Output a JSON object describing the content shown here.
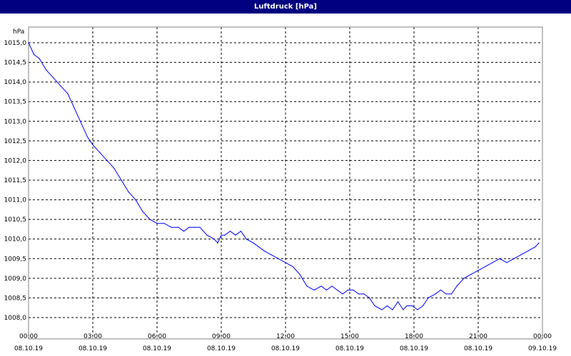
{
  "window": {
    "title": "Luftdruck [hPa]"
  },
  "colors": {
    "titlebar": "#000080",
    "line": "#0000ff",
    "grid": "#000000"
  },
  "chart_data": {
    "type": "line",
    "title": "Luftdruck [hPa]",
    "ylabel": "hPa",
    "xlabel": "",
    "ylim": [
      1007.9,
      1015.1
    ],
    "xlim_hours": [
      0,
      24
    ],
    "grid": true,
    "y_ticks": [
      "1008,0",
      "1008,5",
      "1009,0",
      "1009,5",
      "1010,0",
      "1010,5",
      "1011,0",
      "1011,5",
      "1012,0",
      "1012,5",
      "1013,0",
      "1013,5",
      "1014,0",
      "1014,5",
      "1015,0"
    ],
    "x_ticks": [
      {
        "time": "00:00",
        "date": "08.10.19"
      },
      {
        "time": "03:00",
        "date": "08.10.19"
      },
      {
        "time": "06:00",
        "date": "08.10.19"
      },
      {
        "time": "09:00",
        "date": "08.10.19"
      },
      {
        "time": "12:00",
        "date": "08.10.19"
      },
      {
        "time": "15:00",
        "date": "08.10.19"
      },
      {
        "time": "18:00",
        "date": "08.10.19"
      },
      {
        "time": "21:00",
        "date": "08.10.19"
      },
      {
        "time": "00:00",
        "date": "09.10.19"
      }
    ],
    "series": [
      {
        "x": [
          "08.10.19 00:00",
          "08.10.19 00:15",
          "08.10.19 00:30",
          "08.10.19 00:50",
          "08.10.19 01:10",
          "08.10.19 01:30",
          "08.10.19 01:50",
          "08.10.19 02:05",
          "08.10.19 02:25",
          "08.10.19 02:45",
          "08.10.19 03:00",
          "08.10.19 03:20",
          "08.10.19 03:40",
          "08.10.19 04:00",
          "08.10.19 04:20",
          "08.10.19 04:40",
          "08.10.19 05:00",
          "08.10.19 05:20",
          "08.10.19 05:40",
          "08.10.19 06:00",
          "08.10.19 06:20",
          "08.10.19 06:40",
          "08.10.19 07:00",
          "08.10.19 07:15",
          "08.10.19 07:30",
          "08.10.19 07:45",
          "08.10.19 08:00",
          "08.10.19 08:20",
          "08.10.19 08:40",
          "08.10.19 08:50",
          "08.10.19 09:00",
          "08.10.19 09:10",
          "08.10.19 09:25",
          "08.10.19 09:40",
          "08.10.19 09:55",
          "08.10.19 10:10",
          "08.10.19 10:30",
          "08.10.19 10:45",
          "08.10.19 11:00",
          "08.10.19 11:20",
          "08.10.19 11:40",
          "08.10.19 12:00",
          "08.10.19 12:20",
          "08.10.19 12:40",
          "08.10.19 13:00",
          "08.10.19 13:20",
          "08.10.19 13:40",
          "08.10.19 13:55",
          "08.10.19 14:10",
          "08.10.19 14:25",
          "08.10.19 14:40",
          "08.10.19 14:55",
          "08.10.19 15:10",
          "08.10.19 15:25",
          "08.10.19 15:40",
          "08.10.19 15:55",
          "08.10.19 16:10",
          "08.10.19 16:30",
          "08.10.19 16:45",
          "08.10.19 17:00",
          "08.10.19 17:15",
          "08.10.19 17:30",
          "08.10.19 17:40",
          "08.10.19 17:55",
          "08.10.19 18:10",
          "08.10.19 18:25",
          "08.10.19 18:40",
          "08.10.19 19:00",
          "08.10.19 19:15",
          "08.10.19 19:30",
          "08.10.19 19:45",
          "08.10.19 20:00",
          "08.10.19 20:20",
          "08.10.19 20:40",
          "08.10.19 21:00",
          "08.10.19 21:20",
          "08.10.19 21:40",
          "08.10.19 22:00",
          "08.10.19 22:20",
          "08.10.19 22:40",
          "08.10.19 23:00",
          "08.10.19 23:20",
          "08.10.19 23:40",
          "08.10.19 23:50"
        ],
        "values": [
          1015.0,
          1014.7,
          1014.6,
          1014.3,
          1014.1,
          1013.9,
          1013.7,
          1013.4,
          1013.0,
          1012.6,
          1012.4,
          1012.2,
          1012.0,
          1011.8,
          1011.5,
          1011.2,
          1011.0,
          1010.7,
          1010.5,
          1010.4,
          1010.4,
          1010.3,
          1010.3,
          1010.2,
          1010.3,
          1010.3,
          1010.3,
          1010.1,
          1010.0,
          1009.9,
          1010.1,
          1010.1,
          1010.2,
          1010.1,
          1010.2,
          1010.0,
          1009.9,
          1009.8,
          1009.7,
          1009.6,
          1009.5,
          1009.4,
          1009.3,
          1009.1,
          1008.8,
          1008.7,
          1008.8,
          1008.7,
          1008.8,
          1008.7,
          1008.6,
          1008.7,
          1008.7,
          1008.6,
          1008.6,
          1008.5,
          1008.3,
          1008.2,
          1008.3,
          1008.2,
          1008.4,
          1008.2,
          1008.3,
          1008.3,
          1008.2,
          1008.3,
          1008.5,
          1008.6,
          1008.7,
          1008.6,
          1008.6,
          1008.8,
          1009.0,
          1009.1,
          1009.2,
          1009.3,
          1009.4,
          1009.5,
          1009.4,
          1009.5,
          1009.6,
          1009.7,
          1009.8,
          1009.9
        ]
      }
    ]
  }
}
